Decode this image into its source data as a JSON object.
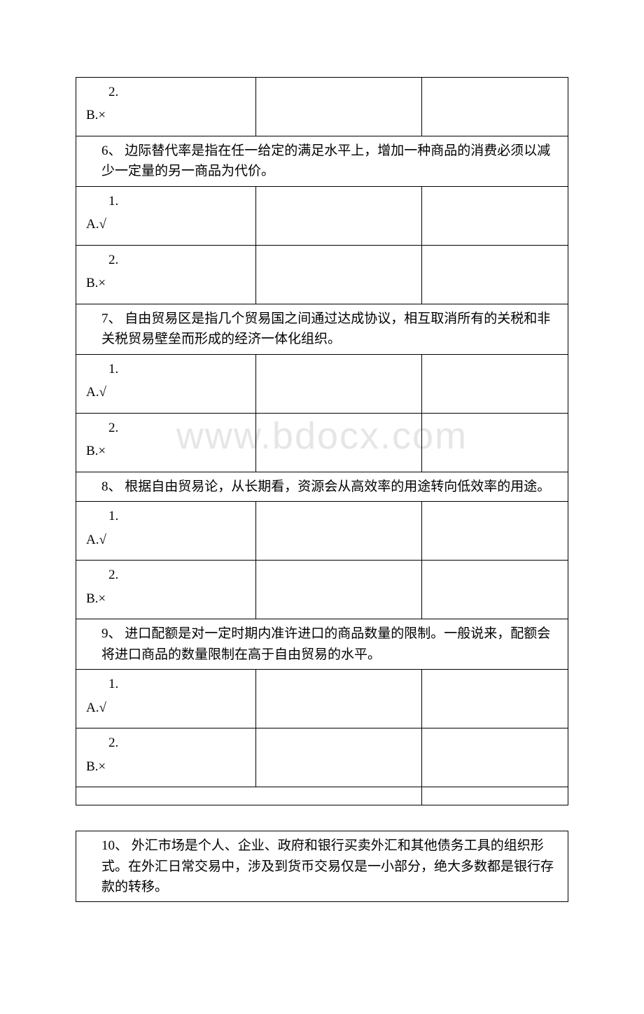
{
  "watermark": "www.bdocx.com",
  "opt1_num": "1.",
  "opt1_val": "A.√",
  "opt2_num": "2.",
  "opt2_val": "B.×",
  "q5_tail_opt_num": "2.",
  "q5_tail_opt_val": "B.×",
  "q6": "6、 边际替代率是指在任一给定的满足水平上，增加一种商品的消费必须以减少一定量的另一商品为代价。",
  "q7": "7、 自由贸易区是指几个贸易国之间通过达成协议，相互取消所有的关税和非关税贸易壁垒而形成的经济一体化组织。",
  "q8": "8、 根据自由贸易论，从长期看，资源会从高效率的用途转向低效率的用途。",
  "q9": "9、 进口配额是对一定时期内准许进口的商品数量的限制。一般说来，配额会将进口商品的数量限制在高于自由贸易的水平。",
  "q10": "10、 外汇市场是个人、企业、政府和银行买卖外汇和其他债务工具的组织形式。在外汇日常交易中，涉及到货币交易仅是一小部分，绝大多数都是银行存款的转移。"
}
